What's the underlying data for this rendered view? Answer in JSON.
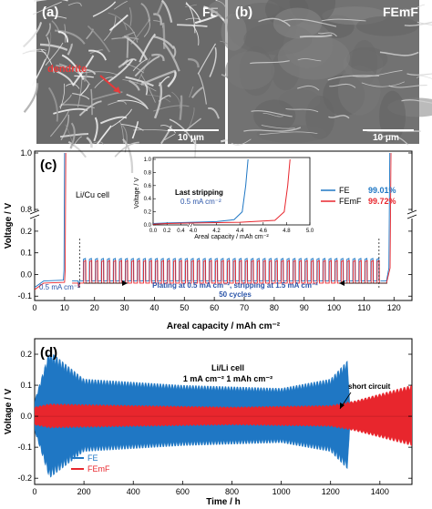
{
  "colors": {
    "fe": "#1f77c4",
    "femf": "#e8262d",
    "annotation_blue": "#2a54a8",
    "dendrite_red": "#e83a3a"
  },
  "panel_a": {
    "label": "(a)",
    "tag": "FE",
    "arrow_text": "dendrite",
    "scale": "10 μm"
  },
  "panel_b": {
    "label": "(b)",
    "tag": "FEmF",
    "scale": "10 μm"
  },
  "panel_c": {
    "label": "(c)",
    "cell_text": "Li/Cu cell",
    "rate_text": "0.5 mA cm⁻²",
    "protocol_line1": "Plating at 0.5 mA cm⁻², stripping at 1.5 mA cm⁻²",
    "protocol_line2": "50 cycles",
    "legend_fe": "FE",
    "legend_femf": "FEmF",
    "ce_fe": "99.01%",
    "ce_femf": "99.72%",
    "xlabel": "Areal capacity / mAh cm⁻²",
    "ylabel": "Voltage / V",
    "xticks": [
      "0",
      "10",
      "20",
      "30",
      "40",
      "50",
      "60",
      "70",
      "80",
      "90",
      "100",
      "110",
      "120"
    ],
    "yticks_low": [
      "-0.1",
      "0.0",
      "0.1",
      "0.2"
    ],
    "yticks_high": [
      "0.8",
      "1.0"
    ],
    "inset": {
      "title": "Last stripping",
      "subtitle": "0.5 mA cm⁻²",
      "xlabel": "Areal capacity / mAh cm⁻²",
      "ylabel": "Voltage / V",
      "xticks": [
        "0.0",
        "0.2",
        "0.4",
        "4.0",
        "4.2",
        "4.4",
        "4.6",
        "4.8",
        "5.0"
      ],
      "yticks": [
        "0.0",
        "0.2",
        "0.4",
        "0.6",
        "0.8",
        "1.0"
      ]
    }
  },
  "panel_d": {
    "label": "(d)",
    "cell_text": "Li/Li cell",
    "cond_text": "1 mA cm⁻² 1 mAh cm⁻²",
    "short_text": "short circuit",
    "legend_fe": "FE",
    "legend_femf": "FEmF",
    "xlabel": "Time / h",
    "ylabel": "Voltage / V",
    "xticks": [
      "0",
      "200",
      "400",
      "600",
      "800",
      "1000",
      "1200",
      "1400"
    ],
    "yticks": [
      "-0.2",
      "-0.1",
      "0.0",
      "0.1",
      "0.2"
    ]
  },
  "chart_data": [
    {
      "type": "line",
      "title": "",
      "xlabel": "Areal capacity / mAh cm⁻²",
      "ylabel": "Voltage / V",
      "xlim": [
        0,
        126
      ],
      "ylim_lower": [
        -0.12,
        0.25
      ],
      "ylim_upper": [
        0.8,
        1.0
      ],
      "series": [
        {
          "name": "FE",
          "coulombic_efficiency": "99.01%",
          "plating_voltage": -0.03,
          "stripping_voltage": 0.07
        },
        {
          "name": "FEmF",
          "coulombic_efficiency": "99.72%",
          "plating_voltage": -0.04,
          "stripping_voltage": 0.06
        }
      ],
      "initial_plating_capacity": 10,
      "cycle_region": [
        15,
        115
      ],
      "cycles": 50
    },
    {
      "type": "line",
      "title": "Last stripping",
      "xlabel": "Areal capacity / mAh cm⁻²",
      "ylabel": "Voltage / V",
      "ylim": [
        0,
        1.0
      ],
      "series": [
        {
          "name": "FE",
          "x": [
            0.0,
            0.2,
            4.0,
            4.2,
            4.35,
            4.42,
            4.45,
            4.47
          ],
          "y": [
            0.02,
            0.03,
            0.04,
            0.05,
            0.08,
            0.2,
            0.6,
            1.0
          ]
        },
        {
          "name": "FEmF",
          "x": [
            0.0,
            0.2,
            4.0,
            4.4,
            4.7,
            4.78,
            4.81,
            4.83
          ],
          "y": [
            0.01,
            0.02,
            0.03,
            0.04,
            0.07,
            0.2,
            0.6,
            1.0
          ]
        }
      ]
    },
    {
      "type": "line",
      "title": "",
      "xlabel": "Time / h",
      "ylabel": "Voltage / V",
      "xlim": [
        0,
        1530
      ],
      "ylim": [
        -0.22,
        0.25
      ],
      "series": [
        {
          "name": "FE",
          "x": [
            0,
            60,
            200,
            600,
            1000,
            1200,
            1270,
            1280
          ],
          "amplitude": [
            0.05,
            0.21,
            0.12,
            0.1,
            0.09,
            0.12,
            0.18,
            0.0
          ]
        },
        {
          "name": "FEmF",
          "x": [
            0,
            60,
            400,
            800,
            1200,
            1300,
            1530
          ],
          "amplitude": [
            0.03,
            0.04,
            0.035,
            0.03,
            0.035,
            0.05,
            0.1
          ]
        }
      ],
      "short_circuit_h": 1280
    }
  ]
}
